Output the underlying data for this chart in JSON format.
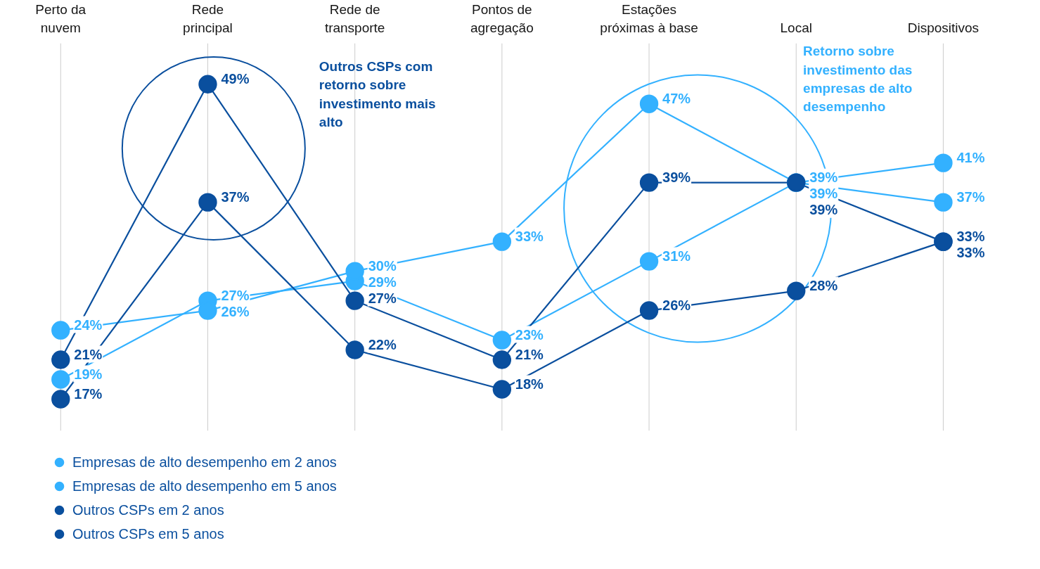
{
  "chart_data": {
    "type": "line",
    "categories": [
      "Perto da nuvem",
      "Rede principal",
      "Rede de transporte",
      "Pontos de agregação",
      "Estações próximas à base",
      "Local",
      "Dispositivos"
    ],
    "series": [
      {
        "name": "Empresas de alto desempenho em 2 anos",
        "color": "#33b1ff",
        "values": [
          19,
          27,
          29,
          23,
          31,
          39,
          37
        ],
        "value_labels": [
          "19%",
          "27%",
          "29%",
          "23%",
          "31%",
          "39%",
          "37%"
        ]
      },
      {
        "name": "Empresas de alto desempenho em 5 anos",
        "color": "#33b1ff",
        "values": [
          24,
          26,
          30,
          33,
          47,
          39,
          41
        ],
        "value_labels": [
          "24%",
          "26%",
          "30%",
          "33%",
          "47%",
          "39%",
          "41%"
        ]
      },
      {
        "name": "Outros CSPs em 2 anos",
        "color": "#0a4f9e",
        "values": [
          17,
          37,
          22,
          18,
          26,
          28,
          33
        ],
        "value_labels": [
          "17%",
          "37%",
          "22%",
          "18%",
          "26%",
          "28%",
          "33%"
        ]
      },
      {
        "name": "Outros CSPs em 5 anos",
        "color": "#0a4f9e",
        "values": [
          21,
          49,
          27,
          21,
          39,
          39,
          33
        ],
        "value_labels": [
          "21%",
          "49%",
          "27%",
          "21%",
          "39%",
          "39%",
          "33%"
        ]
      }
    ],
    "annotations": [
      "Outros CSPs com retorno sobre investimento mais alto",
      "Retorno sobre investimento das empresas de alto desempenho"
    ],
    "marker": "circle",
    "line_style": "solid",
    "grid": "x",
    "legend": "bottom left"
  }
}
